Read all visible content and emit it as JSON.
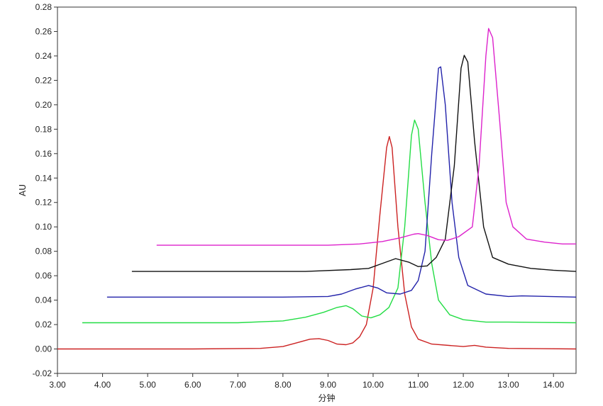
{
  "chart_data": {
    "type": "line",
    "title": "",
    "xlabel": "分钟",
    "ylabel": "AU",
    "xlim": [
      3.0,
      14.5
    ],
    "ylim": [
      -0.02,
      0.28
    ],
    "grid": false,
    "x_ticks": [
      "3.00",
      "4.00",
      "5.00",
      "6.00",
      "7.00",
      "8.00",
      "9.00",
      "10.00",
      "11.00",
      "12.00",
      "13.00",
      "14.00"
    ],
    "y_ticks": [
      "-0.02",
      "0.00",
      "0.02",
      "0.04",
      "0.06",
      "0.08",
      "0.10",
      "0.12",
      "0.14",
      "0.16",
      "0.18",
      "0.20",
      "0.22",
      "0.24",
      "0.26",
      "0.28"
    ],
    "series": [
      {
        "color": "#cc2222",
        "points": [
          [
            3.0,
            0.0
          ],
          [
            6.0,
            0.0
          ],
          [
            7.5,
            0.0005
          ],
          [
            8.0,
            0.002
          ],
          [
            8.3,
            0.005
          ],
          [
            8.6,
            0.008
          ],
          [
            8.8,
            0.0085
          ],
          [
            9.0,
            0.007
          ],
          [
            9.2,
            0.004
          ],
          [
            9.4,
            0.0035
          ],
          [
            9.55,
            0.005
          ],
          [
            9.7,
            0.01
          ],
          [
            9.85,
            0.02
          ],
          [
            10.0,
            0.05
          ],
          [
            10.15,
            0.11
          ],
          [
            10.3,
            0.165
          ],
          [
            10.36,
            0.174
          ],
          [
            10.42,
            0.165
          ],
          [
            10.55,
            0.1
          ],
          [
            10.7,
            0.045
          ],
          [
            10.85,
            0.018
          ],
          [
            11.0,
            0.008
          ],
          [
            11.3,
            0.004
          ],
          [
            12.0,
            0.002
          ],
          [
            12.25,
            0.003
          ],
          [
            12.5,
            0.0015
          ],
          [
            13.0,
            0.0005
          ],
          [
            14.5,
            0.0
          ]
        ]
      },
      {
        "color": "#22dd44",
        "points": [
          [
            3.55,
            0.0215
          ],
          [
            7.0,
            0.0215
          ],
          [
            8.0,
            0.023
          ],
          [
            8.5,
            0.026
          ],
          [
            8.9,
            0.03
          ],
          [
            9.2,
            0.034
          ],
          [
            9.4,
            0.0355
          ],
          [
            9.55,
            0.033
          ],
          [
            9.75,
            0.027
          ],
          [
            9.95,
            0.0255
          ],
          [
            10.15,
            0.028
          ],
          [
            10.35,
            0.034
          ],
          [
            10.55,
            0.05
          ],
          [
            10.7,
            0.1
          ],
          [
            10.85,
            0.175
          ],
          [
            10.92,
            0.1875
          ],
          [
            11.0,
            0.18
          ],
          [
            11.15,
            0.12
          ],
          [
            11.3,
            0.07
          ],
          [
            11.45,
            0.04
          ],
          [
            11.7,
            0.028
          ],
          [
            12.0,
            0.024
          ],
          [
            12.5,
            0.022
          ],
          [
            13.0,
            0.022
          ],
          [
            14.5,
            0.0215
          ]
        ]
      },
      {
        "color": "#2222aa",
        "points": [
          [
            4.1,
            0.0425
          ],
          [
            8.0,
            0.0425
          ],
          [
            9.0,
            0.043
          ],
          [
            9.3,
            0.045
          ],
          [
            9.6,
            0.049
          ],
          [
            9.9,
            0.052
          ],
          [
            10.1,
            0.05
          ],
          [
            10.3,
            0.046
          ],
          [
            10.6,
            0.045
          ],
          [
            10.85,
            0.048
          ],
          [
            11.0,
            0.056
          ],
          [
            11.15,
            0.08
          ],
          [
            11.3,
            0.16
          ],
          [
            11.45,
            0.23
          ],
          [
            11.5,
            0.231
          ],
          [
            11.6,
            0.2
          ],
          [
            11.75,
            0.12
          ],
          [
            11.9,
            0.075
          ],
          [
            12.1,
            0.052
          ],
          [
            12.5,
            0.045
          ],
          [
            13.0,
            0.043
          ],
          [
            13.3,
            0.0435
          ],
          [
            14.5,
            0.0425
          ]
        ]
      },
      {
        "color": "#111111",
        "points": [
          [
            4.65,
            0.0635
          ],
          [
            8.5,
            0.0635
          ],
          [
            9.5,
            0.065
          ],
          [
            9.9,
            0.066
          ],
          [
            10.2,
            0.07
          ],
          [
            10.5,
            0.074
          ],
          [
            10.8,
            0.071
          ],
          [
            11.0,
            0.0675
          ],
          [
            11.2,
            0.068
          ],
          [
            11.4,
            0.075
          ],
          [
            11.6,
            0.09
          ],
          [
            11.8,
            0.15
          ],
          [
            11.95,
            0.23
          ],
          [
            12.02,
            0.2405
          ],
          [
            12.1,
            0.235
          ],
          [
            12.25,
            0.17
          ],
          [
            12.45,
            0.1
          ],
          [
            12.65,
            0.075
          ],
          [
            13.0,
            0.0695
          ],
          [
            13.5,
            0.066
          ],
          [
            14.0,
            0.0645
          ],
          [
            14.5,
            0.0635
          ]
        ]
      },
      {
        "color": "#dd22cc",
        "points": [
          [
            5.2,
            0.085
          ],
          [
            9.0,
            0.085
          ],
          [
            9.7,
            0.086
          ],
          [
            10.2,
            0.088
          ],
          [
            10.6,
            0.091
          ],
          [
            10.9,
            0.094
          ],
          [
            11.0,
            0.0945
          ],
          [
            11.2,
            0.093
          ],
          [
            11.45,
            0.0895
          ],
          [
            11.65,
            0.089
          ],
          [
            11.9,
            0.092
          ],
          [
            12.2,
            0.1
          ],
          [
            12.35,
            0.15
          ],
          [
            12.5,
            0.24
          ],
          [
            12.56,
            0.2625
          ],
          [
            12.65,
            0.255
          ],
          [
            12.8,
            0.19
          ],
          [
            12.95,
            0.12
          ],
          [
            13.1,
            0.1
          ],
          [
            13.4,
            0.09
          ],
          [
            13.8,
            0.0875
          ],
          [
            14.2,
            0.086
          ],
          [
            14.5,
            0.086
          ]
        ]
      }
    ]
  }
}
